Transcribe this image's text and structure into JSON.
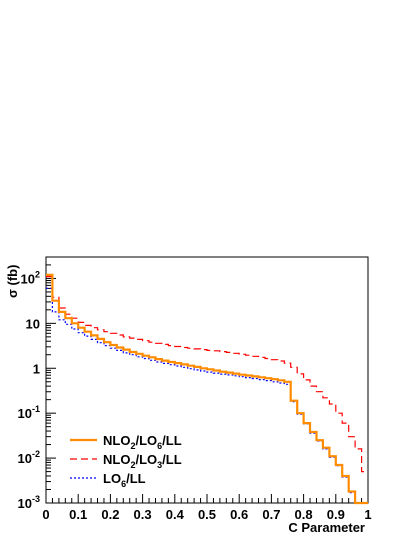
{
  "chart_data": {
    "type": "line",
    "drawstyle": "steps",
    "xlabel": "C Parameter",
    "ylabel_html": "σ (fb)",
    "xlim": [
      0,
      1
    ],
    "ylim": [
      0.001,
      300
    ],
    "yscale": "log",
    "xticks": [
      "0",
      "0.1",
      "0.2",
      "0.3",
      "0.4",
      "0.5",
      "0.6",
      "0.7",
      "0.8",
      "0.9",
      "1"
    ],
    "yticks": [
      {
        "value": 0.001,
        "base": "10",
        "exp": "-3"
      },
      {
        "value": 0.01,
        "base": "10",
        "exp": "-2"
      },
      {
        "value": 0.1,
        "base": "10",
        "exp": "-1"
      },
      {
        "value": 1,
        "base": "1",
        "exp": ""
      },
      {
        "value": 10,
        "base": "10",
        "exp": ""
      },
      {
        "value": 100,
        "base": "10",
        "exp": "2"
      }
    ],
    "legend_placement": "bottom-left",
    "bin_edges": [
      0,
      0.02,
      0.04,
      0.06,
      0.08,
      0.1,
      0.12,
      0.14,
      0.16,
      0.18,
      0.2,
      0.22,
      0.24,
      0.26,
      0.28,
      0.3,
      0.32,
      0.34,
      0.36,
      0.38,
      0.4,
      0.42,
      0.44,
      0.46,
      0.48,
      0.5,
      0.52,
      0.54,
      0.56,
      0.58,
      0.6,
      0.62,
      0.64,
      0.66,
      0.68,
      0.7,
      0.72,
      0.74,
      0.76,
      0.78,
      0.8,
      0.82,
      0.84,
      0.86,
      0.88,
      0.9,
      0.92,
      0.94,
      0.96,
      0.98,
      1.0
    ],
    "series": [
      {
        "label_parts": [
          [
            "NLO",
            ""
          ],
          [
            "2",
            "sub"
          ],
          [
            "/LO",
            ""
          ],
          [
            "6",
            "sub"
          ],
          [
            "/LL",
            ""
          ]
        ],
        "color": "#ff8c00",
        "dash": "",
        "width": 2.2,
        "values": [
          120,
          32,
          18,
          13,
          10,
          8,
          6.5,
          5.4,
          4.5,
          3.8,
          3.3,
          2.9,
          2.6,
          2.3,
          2.1,
          1.9,
          1.75,
          1.6,
          1.48,
          1.38,
          1.3,
          1.22,
          1.14,
          1.07,
          1.0,
          0.95,
          0.89,
          0.84,
          0.8,
          0.76,
          0.72,
          0.69,
          0.66,
          0.63,
          0.6,
          0.57,
          0.54,
          0.5,
          0.19,
          0.1,
          0.06,
          0.038,
          0.025,
          0.017,
          0.011,
          0.007,
          0.004,
          0.0018,
          0.001,
          0.0006
        ]
      },
      {
        "label_parts": [
          [
            "NLO",
            ""
          ],
          [
            "2",
            "sub"
          ],
          [
            "/LO",
            ""
          ],
          [
            "3",
            "sub"
          ],
          [
            "/LL",
            ""
          ]
        ],
        "color": "#ff0000",
        "dash": "7,4",
        "width": 1.2,
        "values": [
          110,
          38,
          22,
          16,
          13,
          10.5,
          9,
          8,
          7.2,
          6.5,
          6,
          5.5,
          5,
          4.7,
          4.4,
          4.1,
          3.8,
          3.6,
          3.4,
          3.2,
          3.05,
          2.9,
          2.8,
          2.7,
          2.6,
          2.5,
          2.45,
          2.35,
          2.25,
          2.15,
          2.05,
          1.95,
          1.85,
          1.75,
          1.65,
          1.55,
          1.45,
          1.3,
          1.05,
          0.75,
          0.55,
          0.4,
          0.3,
          0.22,
          0.16,
          0.1,
          0.06,
          0.03,
          0.016,
          0.005
        ]
      },
      {
        "label_parts": [
          [
            "LO",
            ""
          ],
          [
            "6",
            "sub"
          ],
          [
            "/LL",
            ""
          ]
        ],
        "color": "#0000ff",
        "dash": "2,2",
        "width": 1.2,
        "values": [
          60,
          18,
          12,
          9.5,
          7.5,
          6.2,
          5.2,
          4.4,
          3.7,
          3.2,
          2.8,
          2.5,
          2.2,
          2.0,
          1.8,
          1.65,
          1.5,
          1.38,
          1.28,
          1.2,
          1.12,
          1.05,
          0.98,
          0.92,
          0.87,
          0.82,
          0.78,
          0.74,
          0.71,
          0.68,
          0.65,
          0.62,
          0.59,
          0.56,
          0.53,
          0.5,
          0.47,
          0.44,
          0.18,
          0.095,
          0.058,
          0.036,
          0.024,
          0.016,
          0.0105,
          0.0068,
          0.0038,
          0.0017,
          0.001,
          0.0006
        ]
      }
    ]
  }
}
